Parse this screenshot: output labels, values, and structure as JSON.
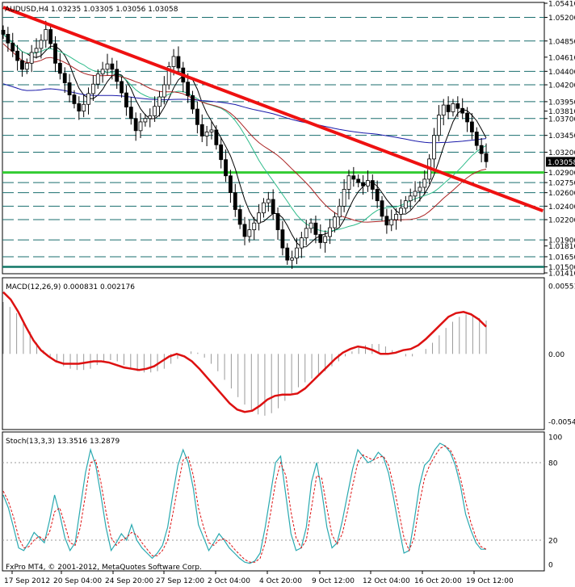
{
  "header": {
    "symbol": "AUDUSD,H4",
    "ohlc": "1.03235 1.03305 1.03056 1.03058"
  },
  "footer": {
    "copyright": "FxPro MT4, © 2001-2012, MetaQuotes Software Corp."
  },
  "x_labels": [
    "17 Sep 2012",
    "20 Sep 04:00",
    "24 Sep 20:00",
    "27 Sep 12:00",
    "2 Oct 04:00",
    "4 Oct 20:00",
    "9 Oct 12:00",
    "12 Oct 04:00",
    "16 Oct 20:00",
    "19 Oct 12:00"
  ],
  "chart_data": [
    {
      "type": "line",
      "panel": "price",
      "title": "AUDUSD,H4 1.03235 1.03305 1.03056 1.03058",
      "ylim": [
        1.0141,
        1.0541
      ],
      "y_tick_labels": [
        "1.05410",
        "1.05200",
        "1.04850",
        "1.04610",
        "1.04400",
        "1.04200",
        "1.03950",
        "1.03810",
        "1.03700",
        "1.03450",
        "1.03200",
        "1.03058",
        "1.02900",
        "1.02750",
        "1.02600",
        "1.02400",
        "1.02200",
        "1.01900",
        "1.01810",
        "1.01650",
        "1.01500",
        "1.01410"
      ],
      "levels": [
        1.052,
        1.0485,
        1.044,
        1.042,
        1.0395,
        1.037,
        1.0345,
        1.032,
        1.029,
        1.0275,
        1.026,
        1.024,
        1.022,
        1.019,
        1.0165,
        1.015
      ],
      "highlight_levels": [
        1.029,
        1.015
      ],
      "current_price": 1.03058,
      "trendline": {
        "color": "#ee1111",
        "start": [
          0,
          1.0535
        ],
        "end": [
          114,
          1.0233
        ]
      },
      "close": [
        1.0495,
        1.0482,
        1.047,
        1.0456,
        1.0443,
        1.0452,
        1.0468,
        1.0474,
        1.0486,
        1.0502,
        1.0481,
        1.0452,
        1.0437,
        1.0423,
        1.0405,
        1.0392,
        1.0381,
        1.0391,
        1.0407,
        1.0421,
        1.0436,
        1.0443,
        1.0451,
        1.0443,
        1.0425,
        1.0408,
        1.0387,
        1.037,
        1.0352,
        1.0365,
        1.037,
        1.0374,
        1.0388,
        1.0402,
        1.042,
        1.0447,
        1.0462,
        1.0445,
        1.0424,
        1.0404,
        1.0384,
        1.0361,
        1.0344,
        1.035,
        1.0353,
        1.0331,
        1.0309,
        1.0285,
        1.026,
        1.0235,
        1.0213,
        1.0195,
        1.0205,
        1.0215,
        1.023,
        1.0245,
        1.025,
        1.0229,
        1.0205,
        1.0178,
        1.016,
        1.0163,
        1.0178,
        1.0193,
        1.0207,
        1.0215,
        1.0198,
        1.0186,
        1.0195,
        1.0208,
        1.0224,
        1.024,
        1.0265,
        1.0285,
        1.028,
        1.0275,
        1.027,
        1.0278,
        1.0265,
        1.0248,
        1.0225,
        1.0212,
        1.022,
        1.0228,
        1.0237,
        1.0248,
        1.0255,
        1.0262,
        1.0268,
        1.028,
        1.031,
        1.0345,
        1.0375,
        1.039,
        1.038,
        1.0392,
        1.0385,
        1.0378,
        1.0365,
        1.035,
        1.033,
        1.0318,
        1.0306
      ],
      "series": [
        {
          "name": "",
          "color": "#000000",
          "type": "ma-fast"
        },
        {
          "name": "",
          "color": "#2dbb8a",
          "type": "ma-mid"
        },
        {
          "name": "",
          "color": "#aa2222",
          "type": "ma-slow"
        },
        {
          "name": "",
          "color": "#1a1aaa",
          "type": "ma-long"
        }
      ]
    },
    {
      "type": "line",
      "panel": "macd",
      "title": "MACD(12,26,9) 0.000831 0.002176",
      "ylim": [
        -0.00547,
        0.00551
      ],
      "y_tick_labels": [
        "0.00551",
        "0.00",
        "-0.00547"
      ],
      "histogram": [
        0.0042,
        0.0038,
        0.0033,
        0.0026,
        0.0018,
        0.0009,
        0.0003,
        -0.0002,
        -0.0006,
        -0.001,
        -0.0012,
        -0.0013,
        -0.0013,
        -0.0012,
        -0.0009,
        -0.0006,
        -0.0005,
        -0.0006,
        -0.0009,
        -0.0012,
        -0.0014,
        -0.0015,
        -0.0015,
        -0.0014,
        -0.0012,
        -0.0008,
        -0.0004,
        0.0,
        0.0002,
        0.0001,
        -0.0003,
        -0.0008,
        -0.0014,
        -0.0021,
        -0.0028,
        -0.0035,
        -0.0041,
        -0.0046,
        -0.0049,
        -0.005,
        -0.0048,
        -0.0044,
        -0.0038,
        -0.0032,
        -0.0027,
        -0.0023,
        -0.002,
        -0.0017,
        -0.0014,
        -0.001,
        -0.0006,
        -0.0002,
        0.0002,
        0.0005,
        0.0007,
        0.0008,
        0.0008,
        0.0006,
        0.0003,
        0.0,
        -0.0002,
        -0.0002,
        0.0,
        0.0004,
        0.0009,
        0.0015,
        0.0021,
        0.0026,
        0.003,
        0.0032,
        0.0031,
        0.0029,
        0.0027
      ],
      "signal": [
        0.005,
        0.0044,
        0.0034,
        0.0022,
        0.0011,
        0.0003,
        -0.0002,
        -0.0006,
        -0.0008,
        -0.0008,
        -0.0008,
        -0.0007,
        -0.0006,
        -0.0006,
        -0.0007,
        -0.0009,
        -0.0011,
        -0.0012,
        -0.0013,
        -0.0012,
        -0.001,
        -0.0006,
        -0.0002,
        0.0,
        -0.0002,
        -0.0006,
        -0.0012,
        -0.0019,
        -0.0026,
        -0.0033,
        -0.004,
        -0.0045,
        -0.0047,
        -0.0046,
        -0.0042,
        -0.0037,
        -0.0034,
        -0.0033,
        -0.0033,
        -0.0032,
        -0.0028,
        -0.0022,
        -0.0016,
        -0.001,
        -0.0004,
        0.0001,
        0.0004,
        0.0006,
        0.0005,
        0.0003,
        0.0,
        0.0,
        0.0001,
        0.0003,
        0.0004,
        0.0007,
        0.0012,
        0.0018,
        0.0024,
        0.003,
        0.0033,
        0.0034,
        0.0032,
        0.0028,
        0.0022
      ]
    },
    {
      "type": "line",
      "panel": "stochastic",
      "title": "Stoch(13,3,3) 13.3516 13.2879",
      "ylim": [
        0,
        100
      ],
      "y_tick_labels": [
        "100",
        "80",
        "20",
        "0"
      ],
      "main": [
        55,
        45,
        30,
        14,
        12,
        18,
        26,
        22,
        18,
        35,
        55,
        40,
        22,
        12,
        18,
        45,
        72,
        90,
        78,
        55,
        30,
        12,
        18,
        25,
        20,
        32,
        20,
        14,
        10,
        6,
        10,
        16,
        30,
        55,
        78,
        90,
        80,
        60,
        32,
        22,
        12,
        18,
        25,
        20,
        14,
        10,
        6,
        3,
        2,
        4,
        10,
        30,
        55,
        80,
        85,
        55,
        25,
        12,
        14,
        30,
        65,
        80,
        58,
        30,
        14,
        18,
        35,
        55,
        75,
        90,
        85,
        80,
        82,
        88,
        84,
        72,
        52,
        30,
        10,
        12,
        35,
        62,
        78,
        82,
        90,
        95,
        93,
        88,
        78,
        62,
        40,
        28,
        18,
        13,
        13
      ],
      "signal": [
        58,
        50,
        38,
        22,
        14,
        15,
        20,
        23,
        20,
        26,
        42,
        45,
        32,
        18,
        16,
        30,
        55,
        80,
        82,
        65,
        42,
        22,
        16,
        20,
        22,
        26,
        24,
        18,
        13,
        8,
        8,
        12,
        20,
        40,
        62,
        82,
        85,
        70,
        45,
        30,
        18,
        16,
        20,
        21,
        18,
        13,
        9,
        5,
        3,
        3,
        6,
        18,
        40,
        65,
        80,
        70,
        42,
        22,
        14,
        20,
        45,
        70,
        68,
        45,
        24,
        17,
        25,
        42,
        62,
        80,
        86,
        84,
        82,
        84,
        85,
        78,
        62,
        42,
        22,
        12,
        22,
        48,
        68,
        78,
        85,
        91,
        93,
        90,
        82,
        68,
        50,
        34,
        22,
        15,
        13
      ]
    }
  ]
}
